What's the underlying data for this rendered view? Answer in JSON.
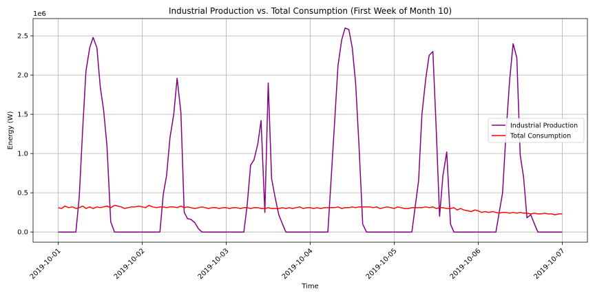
{
  "chart_data": {
    "type": "line",
    "title": "Industrial Production vs. Total Consumption (First Week of Month 10)",
    "xlabel": "Time",
    "ylabel": "Energy (W)",
    "y_multiplier": "1e6",
    "xlim": [
      -0.3,
      6.3
    ],
    "ylim": [
      -0.13,
      2.72
    ],
    "x_ticks": [
      0,
      1,
      2,
      3,
      4,
      5,
      6
    ],
    "x_tick_labels": [
      "2019-10-01",
      "2019-10-02",
      "2019-10-03",
      "2019-10-04",
      "2019-10-05",
      "2019-10-06",
      "2019-10-07"
    ],
    "y_ticks": [
      0,
      0.5,
      1.0,
      1.5,
      2.0,
      2.5
    ],
    "y_tick_labels": [
      "0.0",
      "0.5",
      "1.0",
      "1.5",
      "2.0",
      "2.5"
    ],
    "grid": true,
    "legend_position": "center-right",
    "series": [
      {
        "name": "Industrial Production",
        "color": "#800080",
        "x": [
          0,
          0.1,
          0.21,
          0.25,
          0.29,
          0.33,
          0.375,
          0.415,
          0.46,
          0.5,
          0.54,
          0.58,
          0.625,
          0.67,
          0.71,
          1.0,
          1.21,
          1.25,
          1.29,
          1.33,
          1.375,
          1.415,
          1.46,
          1.5,
          1.54,
          1.58,
          1.625,
          1.67,
          1.71,
          2.0,
          2.21,
          2.25,
          2.29,
          2.33,
          2.375,
          2.415,
          2.46,
          2.5,
          2.54,
          2.58,
          2.625,
          2.67,
          2.71,
          3.0,
          3.21,
          3.25,
          3.29,
          3.33,
          3.375,
          3.415,
          3.46,
          3.5,
          3.54,
          3.58,
          3.625,
          3.67,
          3.71,
          4.0,
          4.21,
          4.25,
          4.29,
          4.33,
          4.375,
          4.415,
          4.46,
          4.5,
          4.54,
          4.58,
          4.625,
          4.67,
          4.71,
          5.0,
          5.21,
          5.25,
          5.29,
          5.33,
          5.375,
          5.415,
          5.46,
          5.5,
          5.54,
          5.58,
          5.625,
          5.67,
          5.71,
          6.0
        ],
        "y": [
          0,
          0,
          0,
          0.45,
          1.3,
          2.05,
          2.35,
          2.48,
          2.35,
          1.85,
          1.55,
          1.1,
          0.13,
          0,
          0,
          0,
          0,
          0.48,
          0.72,
          1.2,
          1.5,
          1.96,
          1.52,
          0.25,
          0.17,
          0.16,
          0.12,
          0.04,
          0,
          0,
          0,
          0.35,
          0.85,
          0.92,
          1.12,
          1.42,
          0.25,
          1.9,
          0.68,
          0.45,
          0.22,
          0.1,
          0,
          0,
          0,
          0.7,
          1.4,
          2.12,
          2.45,
          2.6,
          2.58,
          2.35,
          1.9,
          1.12,
          0.1,
          0,
          0,
          0,
          0,
          0.33,
          0.65,
          1.5,
          1.95,
          2.25,
          2.3,
          1.3,
          0.2,
          0.72,
          1.02,
          0.1,
          0,
          0,
          0,
          0.25,
          0.5,
          1.25,
          1.95,
          2.4,
          2.22,
          0.98,
          0.7,
          0.18,
          0.22,
          0.1,
          0,
          0
        ]
      },
      {
        "name": "Total Consumption",
        "color": "#ff0000",
        "x": [
          0,
          0.04,
          0.08,
          0.125,
          0.17,
          0.21,
          0.25,
          0.29,
          0.33,
          0.375,
          0.415,
          0.46,
          0.5,
          0.54,
          0.58,
          0.625,
          0.67,
          0.71,
          0.75,
          0.79,
          0.83,
          0.875,
          0.915,
          0.96,
          1.0,
          1.04,
          1.08,
          1.125,
          1.17,
          1.21,
          1.25,
          1.29,
          1.33,
          1.375,
          1.415,
          1.46,
          1.5,
          1.54,
          1.58,
          1.625,
          1.67,
          1.71,
          1.75,
          1.79,
          1.83,
          1.875,
          1.915,
          1.96,
          2.0,
          2.04,
          2.08,
          2.125,
          2.17,
          2.21,
          2.25,
          2.29,
          2.33,
          2.375,
          2.415,
          2.46,
          2.5,
          2.54,
          2.58,
          2.625,
          2.67,
          2.71,
          2.75,
          2.79,
          2.83,
          2.875,
          2.915,
          2.96,
          3.0,
          3.04,
          3.08,
          3.125,
          3.17,
          3.21,
          3.25,
          3.29,
          3.33,
          3.375,
          3.415,
          3.46,
          3.5,
          3.54,
          3.58,
          3.625,
          3.67,
          3.71,
          3.75,
          3.79,
          3.83,
          3.875,
          3.915,
          3.96,
          4.0,
          4.04,
          4.08,
          4.125,
          4.17,
          4.21,
          4.25,
          4.29,
          4.33,
          4.375,
          4.415,
          4.46,
          4.5,
          4.54,
          4.58,
          4.625,
          4.67,
          4.71,
          4.75,
          4.79,
          4.83,
          4.875,
          4.915,
          4.96,
          5.0,
          5.04,
          5.08,
          5.125,
          5.17,
          5.21,
          5.25,
          5.29,
          5.33,
          5.375,
          5.415,
          5.46,
          5.5,
          5.54,
          5.58,
          5.625,
          5.67,
          5.71,
          5.75,
          5.79,
          5.83,
          5.875,
          5.915,
          5.96,
          6.0
        ],
        "y": [
          0.31,
          0.3,
          0.33,
          0.31,
          0.32,
          0.3,
          0.31,
          0.33,
          0.3,
          0.32,
          0.3,
          0.32,
          0.31,
          0.32,
          0.33,
          0.31,
          0.34,
          0.33,
          0.32,
          0.3,
          0.31,
          0.32,
          0.32,
          0.33,
          0.32,
          0.31,
          0.34,
          0.32,
          0.31,
          0.32,
          0.32,
          0.31,
          0.32,
          0.32,
          0.31,
          0.33,
          0.31,
          0.32,
          0.31,
          0.3,
          0.31,
          0.32,
          0.31,
          0.3,
          0.31,
          0.31,
          0.3,
          0.31,
          0.31,
          0.3,
          0.31,
          0.31,
          0.3,
          0.31,
          0.31,
          0.3,
          0.31,
          0.31,
          0.3,
          0.3,
          0.31,
          0.3,
          0.3,
          0.3,
          0.31,
          0.3,
          0.31,
          0.3,
          0.31,
          0.32,
          0.3,
          0.31,
          0.31,
          0.3,
          0.31,
          0.3,
          0.31,
          0.31,
          0.31,
          0.31,
          0.32,
          0.3,
          0.31,
          0.31,
          0.32,
          0.31,
          0.32,
          0.32,
          0.32,
          0.32,
          0.31,
          0.32,
          0.3,
          0.31,
          0.32,
          0.31,
          0.3,
          0.32,
          0.31,
          0.3,
          0.3,
          0.31,
          0.31,
          0.31,
          0.31,
          0.32,
          0.31,
          0.32,
          0.3,
          0.31,
          0.31,
          0.3,
          0.3,
          0.31,
          0.28,
          0.3,
          0.28,
          0.27,
          0.26,
          0.28,
          0.27,
          0.25,
          0.26,
          0.25,
          0.26,
          0.25,
          0.24,
          0.25,
          0.25,
          0.24,
          0.25,
          0.24,
          0.25,
          0.24,
          0.24,
          0.23,
          0.24,
          0.23,
          0.23,
          0.24,
          0.23,
          0.23,
          0.22,
          0.23,
          0.23
        ]
      }
    ]
  }
}
